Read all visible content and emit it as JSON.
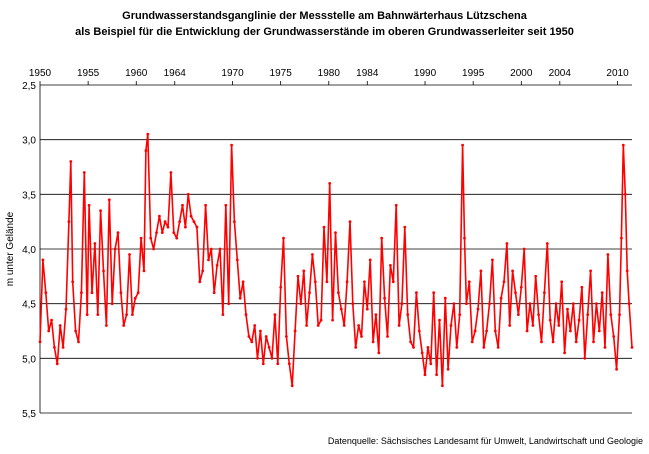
{
  "title_line1": "Grundwasserstandsganglinie der Messstelle am Bahnwärterhaus Lützschena",
  "title_line2": "als Beispiel für die Entwicklung der Grundwasserstände im oberen Grundwasserleiter seit 1950",
  "source": "Datenquelle: Sächsisches Landesamt für Umwelt, Landwirtschaft und Geologie",
  "chart_data": {
    "type": "line",
    "ylabel": "m unter Gelände",
    "ylim": [
      2.5,
      5.5
    ],
    "y_inverted": true,
    "y_ticks": [
      "2,5",
      "3,0",
      "3,5",
      "4,0",
      "4,5",
      "5,0",
      "5,5"
    ],
    "x_range": [
      1950,
      2011.5
    ],
    "x_tick_labels": [
      "1950",
      "1955",
      "1960",
      "1964",
      "1970",
      "1975",
      "1980",
      "1984",
      "1990",
      "1995",
      "2000",
      "2004",
      "2010"
    ],
    "x_tick_positions": [
      1950,
      1955,
      1960,
      1964,
      1970,
      1975,
      1980,
      1984,
      1990,
      1995,
      2000,
      2004,
      2010
    ],
    "grid": "horizontal",
    "line_color": "#ff0000",
    "series": [
      {
        "name": "",
        "x": [
          1950.0,
          1950.3,
          1950.6,
          1950.9,
          1951.2,
          1951.5,
          1951.8,
          1952.1,
          1952.4,
          1952.7,
          1953.0,
          1953.2,
          1953.4,
          1953.7,
          1954.0,
          1954.3,
          1954.6,
          1954.9,
          1955.1,
          1955.4,
          1955.7,
          1956.0,
          1956.3,
          1956.6,
          1956.9,
          1957.2,
          1957.5,
          1957.8,
          1958.1,
          1958.4,
          1958.7,
          1959.0,
          1959.3,
          1959.6,
          1959.9,
          1960.2,
          1960.5,
          1960.8,
          1961.0,
          1961.2,
          1961.5,
          1961.8,
          1962.1,
          1962.4,
          1962.7,
          1963.0,
          1963.3,
          1963.6,
          1963.9,
          1964.2,
          1964.5,
          1964.8,
          1965.1,
          1965.4,
          1965.7,
          1966.0,
          1966.3,
          1966.6,
          1966.9,
          1967.2,
          1967.5,
          1967.8,
          1968.1,
          1968.4,
          1968.7,
          1969.0,
          1969.3,
          1969.6,
          1969.9,
          1970.2,
          1970.5,
          1970.8,
          1971.1,
          1971.4,
          1971.7,
          1972.0,
          1972.3,
          1972.6,
          1972.9,
          1973.2,
          1973.5,
          1973.8,
          1974.1,
          1974.4,
          1974.7,
          1975.0,
          1975.3,
          1975.6,
          1975.9,
          1976.2,
          1976.5,
          1976.8,
          1977.1,
          1977.4,
          1977.7,
          1978.0,
          1978.3,
          1978.6,
          1978.9,
          1979.2,
          1979.5,
          1979.8,
          1980.1,
          1980.4,
          1980.7,
          1981.0,
          1981.3,
          1981.6,
          1981.9,
          1982.2,
          1982.5,
          1982.8,
          1983.1,
          1983.4,
          1983.7,
          1984.0,
          1984.3,
          1984.6,
          1984.9,
          1985.2,
          1985.5,
          1985.8,
          1986.1,
          1986.4,
          1986.7,
          1987.0,
          1987.3,
          1987.6,
          1987.9,
          1988.2,
          1988.5,
          1988.8,
          1989.1,
          1989.4,
          1989.7,
          1990.0,
          1990.3,
          1990.6,
          1990.9,
          1991.2,
          1991.5,
          1991.8,
          1992.1,
          1992.4,
          1992.7,
          1993.0,
          1993.3,
          1993.6,
          1993.9,
          1994.1,
          1994.3,
          1994.6,
          1994.9,
          1995.2,
          1995.5,
          1995.8,
          1996.1,
          1996.4,
          1996.7,
          1997.0,
          1997.3,
          1997.6,
          1997.9,
          1998.2,
          1998.5,
          1998.8,
          1999.1,
          1999.4,
          1999.7,
          2000.0,
          2000.3,
          2000.6,
          2000.9,
          2001.2,
          2001.5,
          2001.8,
          2002.1,
          2002.4,
          2002.7,
          2003.0,
          2003.3,
          2003.6,
          2003.9,
          2004.2,
          2004.5,
          2004.8,
          2005.1,
          2005.4,
          2005.7,
          2006.0,
          2006.3,
          2006.6,
          2006.9,
          2007.2,
          2007.5,
          2007.8,
          2008.1,
          2008.4,
          2008.7,
          2009.0,
          2009.3,
          2009.6,
          2009.9,
          2010.2,
          2010.4,
          2010.6,
          2010.8,
          2011.0,
          2011.2,
          2011.5
        ],
        "values": [
          4.85,
          4.1,
          4.4,
          4.75,
          4.65,
          4.9,
          5.05,
          4.7,
          4.9,
          4.55,
          3.75,
          3.2,
          4.3,
          4.75,
          4.85,
          4.4,
          3.3,
          4.6,
          3.6,
          4.4,
          3.95,
          4.6,
          3.65,
          4.2,
          4.7,
          3.55,
          4.5,
          4.0,
          3.85,
          4.4,
          4.7,
          4.6,
          4.05,
          4.6,
          4.45,
          4.4,
          3.9,
          4.2,
          3.1,
          2.95,
          3.9,
          4.0,
          3.85,
          3.7,
          3.85,
          3.75,
          3.8,
          3.3,
          3.85,
          3.9,
          3.75,
          3.6,
          3.8,
          3.5,
          3.7,
          3.75,
          3.8,
          4.3,
          4.2,
          3.6,
          4.1,
          4.0,
          4.4,
          4.15,
          4.0,
          4.6,
          3.6,
          4.5,
          3.05,
          3.75,
          4.1,
          4.45,
          4.3,
          4.6,
          4.8,
          4.85,
          4.7,
          5.0,
          4.75,
          5.05,
          4.8,
          4.9,
          5.0,
          4.6,
          5.05,
          4.35,
          3.9,
          4.8,
          5.05,
          5.25,
          4.75,
          4.25,
          4.5,
          4.2,
          4.7,
          4.4,
          4.05,
          4.3,
          4.7,
          4.65,
          3.8,
          4.3,
          3.4,
          4.65,
          3.85,
          4.4,
          4.55,
          4.7,
          4.3,
          3.75,
          4.5,
          4.9,
          4.7,
          4.8,
          4.3,
          4.55,
          4.1,
          4.85,
          4.6,
          4.95,
          3.9,
          4.45,
          4.8,
          4.15,
          4.3,
          3.6,
          4.7,
          4.5,
          3.8,
          4.6,
          4.85,
          4.9,
          4.4,
          4.75,
          4.95,
          5.15,
          4.9,
          5.05,
          4.4,
          5.15,
          4.65,
          5.25,
          4.45,
          5.1,
          4.7,
          4.5,
          4.9,
          4.6,
          3.05,
          3.9,
          4.5,
          4.3,
          4.85,
          4.75,
          4.55,
          4.2,
          4.9,
          4.75,
          4.5,
          4.1,
          4.75,
          4.9,
          4.45,
          4.3,
          3.95,
          4.7,
          4.2,
          4.4,
          4.6,
          4.35,
          4.0,
          4.75,
          4.5,
          4.7,
          4.25,
          4.6,
          4.85,
          4.4,
          3.95,
          4.65,
          4.85,
          4.5,
          4.7,
          4.3,
          4.95,
          4.55,
          4.75,
          4.5,
          4.85,
          4.65,
          4.35,
          5.0,
          4.6,
          4.2,
          4.85,
          4.5,
          4.75,
          4.4,
          4.9,
          4.05,
          4.6,
          4.8,
          5.1,
          4.6,
          3.9,
          3.05,
          3.5,
          4.2,
          4.5,
          4.9
        ]
      }
    ]
  }
}
